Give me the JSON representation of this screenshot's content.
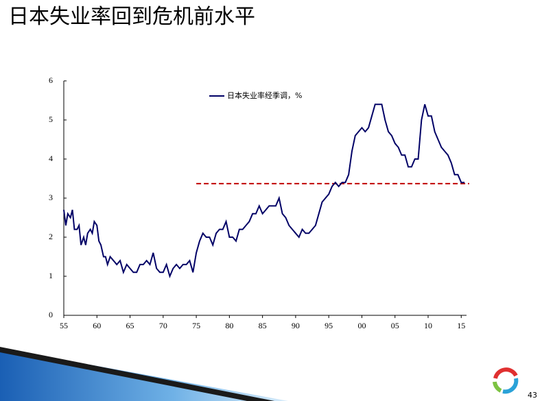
{
  "chart_data": {
    "type": "line",
    "title": "日本失业率回到危机前水平",
    "page_number": "43",
    "x": [
      1955,
      1955.3,
      1955.6,
      1956,
      1956.3,
      1956.6,
      1957,
      1957.3,
      1957.6,
      1958,
      1958.3,
      1958.6,
      1959,
      1959.3,
      1959.6,
      1960,
      1960.3,
      1960.6,
      1961,
      1961.3,
      1961.6,
      1962,
      1962.5,
      1963,
      1963.5,
      1964,
      1964.5,
      1965,
      1965.5,
      1966,
      1966.5,
      1967,
      1967.5,
      1968,
      1968.5,
      1969,
      1969.5,
      1970,
      1970.5,
      1971,
      1971.5,
      1972,
      1972.5,
      1973,
      1973.5,
      1974,
      1974.5,
      1975,
      1975.5,
      1976,
      1976.5,
      1977,
      1977.5,
      1978,
      1978.5,
      1979,
      1979.5,
      1980,
      1980.5,
      1981,
      1981.5,
      1982,
      1982.5,
      1983,
      1983.5,
      1984,
      1984.5,
      1985,
      1985.5,
      1986,
      1986.5,
      1987,
      1987.5,
      1988,
      1988.5,
      1989,
      1989.5,
      1990,
      1990.5,
      1991,
      1991.5,
      1992,
      1992.5,
      1993,
      1993.5,
      1994,
      1994.5,
      1995,
      1995.5,
      1996,
      1996.5,
      1997,
      1997.5,
      1998,
      1998.5,
      1999,
      1999.5,
      2000,
      2000.5,
      2001,
      2001.5,
      2002,
      2002.5,
      2003,
      2003.5,
      2004,
      2004.5,
      2005,
      2005.5,
      2006,
      2006.5,
      2007,
      2007.5,
      2008,
      2008.5,
      2009,
      2009.5,
      2010,
      2010.5,
      2011,
      2011.5,
      2012,
      2012.5,
      2013,
      2013.5,
      2014,
      2014.5,
      2015,
      2015.5
    ],
    "series": [
      {
        "name": "日本失业率经季调，%",
        "color": "#000066",
        "values": [
          2.7,
          2.3,
          2.6,
          2.5,
          2.7,
          2.2,
          2.2,
          2.3,
          1.8,
          2.0,
          1.8,
          2.1,
          2.2,
          2.1,
          2.4,
          2.3,
          1.9,
          1.8,
          1.5,
          1.5,
          1.3,
          1.5,
          1.4,
          1.3,
          1.4,
          1.1,
          1.3,
          1.2,
          1.1,
          1.1,
          1.3,
          1.3,
          1.4,
          1.3,
          1.6,
          1.2,
          1.1,
          1.1,
          1.3,
          1.0,
          1.2,
          1.3,
          1.2,
          1.3,
          1.3,
          1.4,
          1.1,
          1.6,
          1.9,
          2.1,
          2.0,
          2.0,
          1.8,
          2.1,
          2.2,
          2.2,
          2.4,
          2.0,
          2.0,
          1.9,
          2.2,
          2.2,
          2.3,
          2.4,
          2.6,
          2.6,
          2.8,
          2.6,
          2.7,
          2.8,
          2.8,
          2.8,
          3.0,
          2.6,
          2.5,
          2.3,
          2.2,
          2.1,
          2.0,
          2.2,
          2.1,
          2.1,
          2.2,
          2.3,
          2.6,
          2.9,
          3.0,
          3.1,
          3.3,
          3.4,
          3.3,
          3.4,
          3.4,
          3.6,
          4.2,
          4.6,
          4.7,
          4.8,
          4.7,
          4.8,
          5.1,
          5.4,
          5.4,
          5.4,
          5.0,
          4.7,
          4.6,
          4.4,
          4.3,
          4.1,
          4.1,
          3.8,
          3.8,
          4.0,
          4.0,
          5.0,
          5.4,
          5.1,
          5.1,
          4.7,
          4.5,
          4.3,
          4.2,
          4.1,
          3.9,
          3.6,
          3.6,
          3.4,
          3.4
        ]
      }
    ],
    "reference_line": {
      "value": 3.37,
      "x": [
        1975,
        2016.2
      ],
      "color": "#c00000",
      "style": "dashed"
    },
    "xlim": [
      1955,
      2015.8
    ],
    "xticks": [
      {
        "value": 1955,
        "label": "55"
      },
      {
        "value": 1960,
        "label": "60"
      },
      {
        "value": 1965,
        "label": "65"
      },
      {
        "value": 1970,
        "label": "70"
      },
      {
        "value": 1975,
        "label": "75"
      },
      {
        "value": 1980,
        "label": "80"
      },
      {
        "value": 1985,
        "label": "85"
      },
      {
        "value": 1990,
        "label": "90"
      },
      {
        "value": 1995,
        "label": "95"
      },
      {
        "value": 2000,
        "label": "00"
      },
      {
        "value": 2005,
        "label": "05"
      },
      {
        "value": 2010,
        "label": "10"
      },
      {
        "value": 2015,
        "label": "15"
      }
    ],
    "ylim": [
      0,
      6
    ],
    "yticks": [
      0,
      1,
      2,
      3,
      4,
      5,
      6
    ],
    "grid": false,
    "legend": "upper left"
  }
}
